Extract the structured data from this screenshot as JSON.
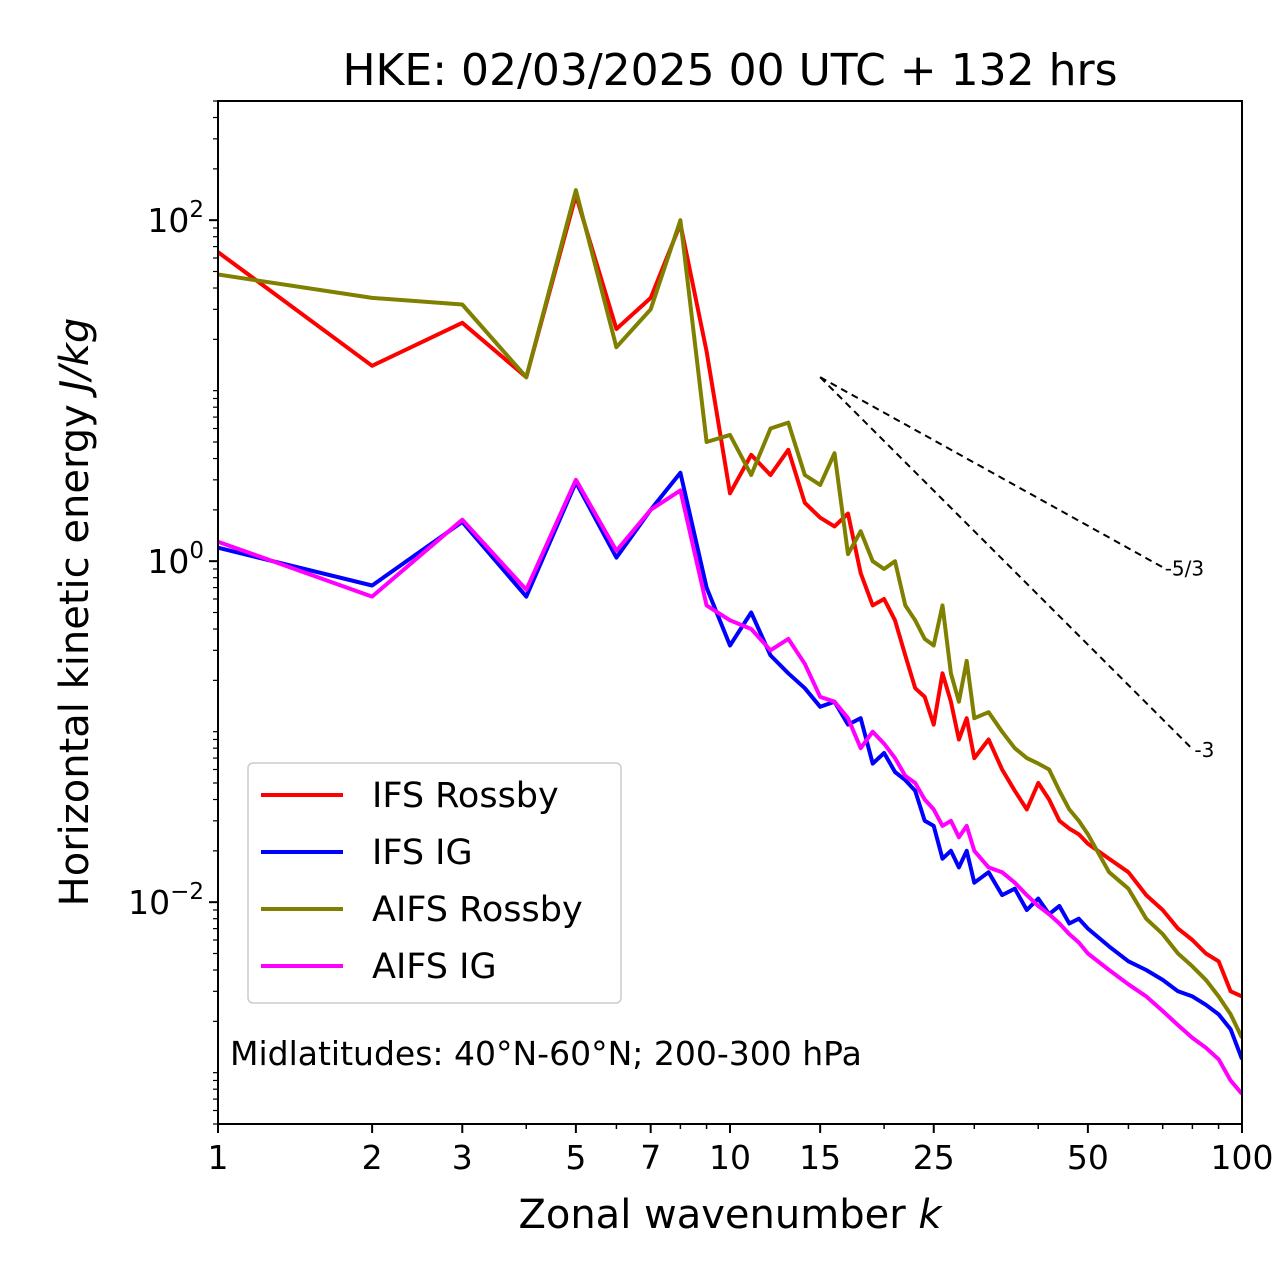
{
  "chart_data": {
    "type": "line",
    "title": "HKE: 02/03/2025 00 UTC + 132 hrs",
    "xlabel_text": "Zonal wavenumber ",
    "xlabel_var": "k",
    "ylabel_text": "Horizontal kinetic energy ",
    "ylabel_units": "J/kg",
    "x_scale": "log",
    "y_scale": "log",
    "xlim": [
      1,
      100
    ],
    "ylim": [
      0.0005,
      500
    ],
    "grid": false,
    "legend_position": "lower-left",
    "annotation": "Midlatitudes: 40°N-60°N; 200-300 hPa",
    "x_ticks": [
      1,
      2,
      3,
      5,
      7,
      10,
      15,
      25,
      50,
      100
    ],
    "x_tick_labels": [
      "1",
      "2",
      "3",
      "5",
      "7",
      "10",
      "15",
      "25",
      "50",
      "100"
    ],
    "y_ticks": [
      {
        "value": 100,
        "base": "10",
        "exp": "2"
      },
      {
        "value": 1,
        "base": "10",
        "exp": "0"
      },
      {
        "value": 0.01,
        "base": "10",
        "exp": "−2"
      }
    ],
    "reference_slopes": [
      {
        "label": "-5/3",
        "slope": -1.6667,
        "x0": 15,
        "y0": 12,
        "x1": 70
      },
      {
        "label": "-3",
        "slope": -3,
        "x0": 15,
        "y0": 12,
        "x1": 80
      }
    ],
    "series": [
      {
        "name": "IFS Rossby",
        "color": "#ff0000",
        "x": [
          1,
          2,
          3,
          4,
          5,
          6,
          7,
          8,
          9,
          10,
          11,
          12,
          13,
          14,
          15,
          16,
          17,
          18,
          19,
          20,
          21,
          22,
          23,
          24,
          25,
          26,
          27,
          28,
          29,
          30,
          32,
          34,
          36,
          38,
          40,
          42,
          44,
          46,
          48,
          50,
          55,
          60,
          65,
          70,
          75,
          80,
          85,
          90,
          95,
          100
        ],
        "y": [
          65,
          14,
          25,
          12,
          140,
          23,
          35,
          95,
          17,
          2.5,
          4.2,
          3.2,
          4.5,
          2.2,
          1.8,
          1.6,
          1.9,
          0.85,
          0.55,
          0.6,
          0.45,
          0.28,
          0.18,
          0.16,
          0.11,
          0.22,
          0.15,
          0.09,
          0.12,
          0.07,
          0.09,
          0.06,
          0.045,
          0.035,
          0.05,
          0.04,
          0.03,
          0.027,
          0.025,
          0.022,
          0.018,
          0.015,
          0.011,
          0.009,
          0.007,
          0.006,
          0.005,
          0.0045,
          0.003,
          0.0028
        ]
      },
      {
        "name": "IFS IG",
        "color": "#0000ff",
        "x": [
          1,
          2,
          3,
          4,
          5,
          6,
          7,
          8,
          9,
          10,
          11,
          12,
          13,
          14,
          15,
          16,
          17,
          18,
          19,
          20,
          21,
          22,
          23,
          24,
          25,
          26,
          27,
          28,
          29,
          30,
          32,
          34,
          36,
          38,
          40,
          42,
          44,
          46,
          48,
          50,
          55,
          60,
          65,
          70,
          75,
          80,
          85,
          90,
          95,
          100
        ],
        "y": [
          1.2,
          0.72,
          1.7,
          0.62,
          2.9,
          1.05,
          2.0,
          3.3,
          0.7,
          0.32,
          0.5,
          0.28,
          0.22,
          0.18,
          0.14,
          0.15,
          0.11,
          0.12,
          0.065,
          0.075,
          0.058,
          0.052,
          0.045,
          0.03,
          0.028,
          0.018,
          0.02,
          0.016,
          0.02,
          0.013,
          0.015,
          0.011,
          0.012,
          0.009,
          0.0105,
          0.0085,
          0.0095,
          0.0075,
          0.008,
          0.007,
          0.0055,
          0.0045,
          0.004,
          0.0035,
          0.003,
          0.0028,
          0.0025,
          0.0022,
          0.0018,
          0.0012
        ]
      },
      {
        "name": "AIFS Rossby",
        "color": "#808000",
        "x": [
          1,
          2,
          3,
          4,
          5,
          6,
          7,
          8,
          9,
          10,
          11,
          12,
          13,
          14,
          15,
          16,
          17,
          18,
          19,
          20,
          21,
          22,
          23,
          24,
          25,
          26,
          27,
          28,
          29,
          30,
          32,
          34,
          36,
          38,
          40,
          42,
          44,
          46,
          48,
          50,
          55,
          60,
          65,
          70,
          75,
          80,
          85,
          90,
          95,
          100
        ],
        "y": [
          48,
          35,
          32,
          12,
          150,
          18,
          30,
          100,
          5.0,
          5.5,
          3.2,
          6.0,
          6.5,
          3.2,
          2.8,
          4.3,
          1.1,
          1.5,
          1.0,
          0.9,
          1.0,
          0.55,
          0.45,
          0.35,
          0.32,
          0.55,
          0.22,
          0.15,
          0.26,
          0.12,
          0.13,
          0.1,
          0.08,
          0.07,
          0.065,
          0.06,
          0.045,
          0.035,
          0.03,
          0.025,
          0.015,
          0.012,
          0.008,
          0.0065,
          0.005,
          0.0042,
          0.0035,
          0.0028,
          0.0022,
          0.0016
        ]
      },
      {
        "name": "AIFS IG",
        "color": "#ff00ff",
        "x": [
          1,
          2,
          3,
          4,
          5,
          6,
          7,
          8,
          9,
          10,
          11,
          12,
          13,
          14,
          15,
          16,
          17,
          18,
          19,
          20,
          21,
          22,
          23,
          24,
          25,
          26,
          27,
          28,
          29,
          30,
          32,
          34,
          36,
          38,
          40,
          42,
          44,
          46,
          48,
          50,
          55,
          60,
          65,
          70,
          75,
          80,
          85,
          90,
          95,
          100
        ],
        "y": [
          1.3,
          0.62,
          1.75,
          0.68,
          3.0,
          1.15,
          2.0,
          2.6,
          0.55,
          0.45,
          0.4,
          0.3,
          0.35,
          0.25,
          0.16,
          0.15,
          0.12,
          0.08,
          0.1,
          0.085,
          0.07,
          0.055,
          0.05,
          0.04,
          0.035,
          0.028,
          0.03,
          0.024,
          0.028,
          0.02,
          0.016,
          0.015,
          0.013,
          0.011,
          0.0095,
          0.0085,
          0.0075,
          0.0065,
          0.0058,
          0.005,
          0.004,
          0.0033,
          0.0028,
          0.0023,
          0.0019,
          0.0016,
          0.0014,
          0.0012,
          0.0009,
          0.00075
        ]
      }
    ]
  }
}
